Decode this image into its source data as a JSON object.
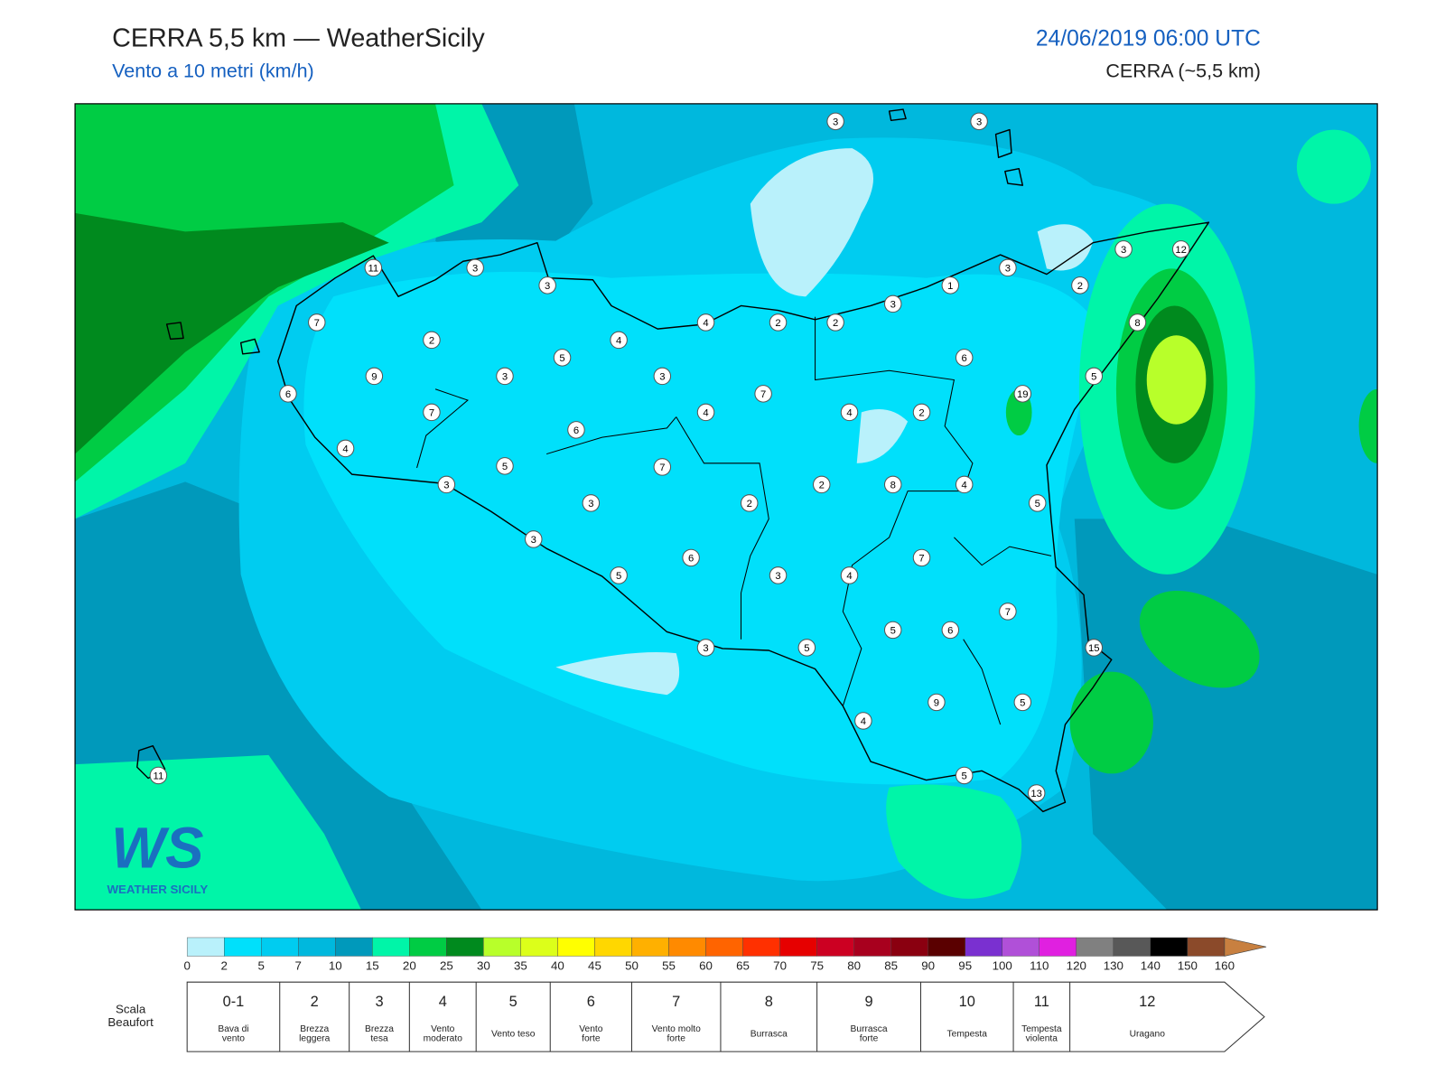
{
  "header": {
    "title": "CERRA 5,5 km — WeatherSicily",
    "subtitle": "Vento a 10 metri (km/h)",
    "datetime": "24/06/2019 06:00 UTC",
    "model": "CERRA (~5,5 km)"
  },
  "stations": [
    3,
    3,
    11,
    3,
    3,
    3,
    12,
    3,
    2,
    1,
    3,
    7,
    4,
    2,
    2,
    8,
    2,
    4,
    5,
    6,
    9,
    3,
    3,
    5,
    6,
    7,
    4,
    7,
    4,
    2,
    19,
    4,
    6,
    5,
    7,
    3,
    2,
    8,
    4,
    3,
    2,
    5,
    3,
    7,
    6,
    5,
    3,
    4,
    7,
    5,
    6,
    15,
    3,
    5,
    9,
    5,
    4,
    11,
    5,
    13
  ],
  "colorbar": {
    "ticks": [
      0,
      2,
      5,
      7,
      10,
      15,
      20,
      25,
      30,
      35,
      40,
      45,
      50,
      55,
      60,
      65,
      70,
      75,
      80,
      85,
      90,
      95,
      100,
      110,
      120,
      130,
      140,
      150,
      160
    ],
    "colors": [
      "#b9f1fb",
      "#00e0fb",
      "#00ccf0",
      "#00b8dd",
      "#0099bb",
      "#00f5a8",
      "#00cc44",
      "#008a1e",
      "#b8ff2a",
      "#dcff1a",
      "#ffff00",
      "#ffd700",
      "#ffb000",
      "#ff8a00",
      "#ff6400",
      "#ff3000",
      "#e60000",
      "#cc0022",
      "#a8001e",
      "#8a0010",
      "#5a0000",
      "#7a30d0",
      "#b050d8",
      "#e020e0",
      "#808080",
      "#585858",
      "#000000",
      "#8b4a2a",
      "#c88040"
    ]
  },
  "beaufort": {
    "label": [
      "Scala",
      "Beaufort"
    ],
    "classes": [
      {
        "force": "0-1",
        "desc": [
          "Bava di",
          "vento"
        ]
      },
      {
        "force": 2,
        "desc": [
          "Brezza",
          "leggera"
        ]
      },
      {
        "force": 3,
        "desc": [
          "Brezza",
          "tesa"
        ]
      },
      {
        "force": 4,
        "desc": [
          "Vento",
          "moderato"
        ]
      },
      {
        "force": 5,
        "desc": [
          "Vento teso"
        ]
      },
      {
        "force": 6,
        "desc": [
          "Vento",
          "forte"
        ]
      },
      {
        "force": 7,
        "desc": [
          "Vento molto",
          "forte"
        ]
      },
      {
        "force": 8,
        "desc": [
          "Burrasca"
        ]
      },
      {
        "force": 9,
        "desc": [
          "Burrasca",
          "forte"
        ]
      },
      {
        "force": 10,
        "desc": [
          "Tempesta"
        ]
      },
      {
        "force": 11,
        "desc": [
          "Tempesta",
          "violenta"
        ]
      },
      {
        "force": 12,
        "desc": [
          "Uragano"
        ]
      }
    ]
  },
  "logo": {
    "mark": "WS",
    "name": "WEATHER SICILY"
  }
}
